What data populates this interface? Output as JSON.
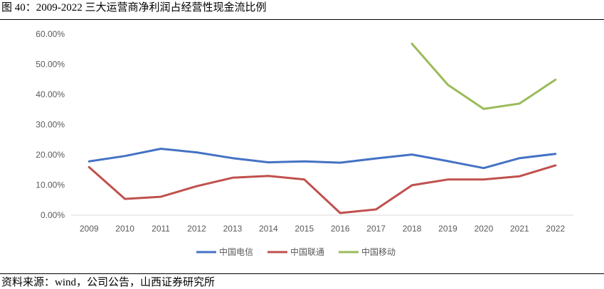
{
  "figure": {
    "title": "图 40：2009-2022 三大运营商净利润占经营性现金流比例",
    "source": "资料来源：wind，公司公告，山西证券研究所"
  },
  "chart_data": {
    "type": "line",
    "title": "",
    "xlabel": "",
    "ylabel": "",
    "categories": [
      "2009",
      "2010",
      "2011",
      "2012",
      "2013",
      "2014",
      "2015",
      "2016",
      "2017",
      "2018",
      "2019",
      "2020",
      "2021",
      "2022"
    ],
    "y_ticks": [
      "0.00%",
      "10.00%",
      "20.00%",
      "30.00%",
      "40.00%",
      "50.00%",
      "60.00%"
    ],
    "ylim": [
      0,
      60
    ],
    "grid": false,
    "legend_position": "bottom",
    "series": [
      {
        "name": "中国电信",
        "color": "#4472C4",
        "values": [
          17.8,
          19.6,
          22.0,
          20.8,
          18.9,
          17.5,
          17.8,
          17.4,
          18.8,
          20.1,
          17.9,
          15.6,
          18.9,
          20.3
        ]
      },
      {
        "name": "中国联通",
        "color": "#C0504D",
        "values": [
          15.9,
          5.4,
          6.1,
          9.6,
          12.4,
          13.0,
          11.8,
          0.7,
          1.9,
          9.9,
          11.8,
          11.8,
          12.9,
          16.5
        ]
      },
      {
        "name": "中国移动",
        "color": "#9BBB59",
        "values": [
          null,
          null,
          null,
          null,
          null,
          null,
          null,
          null,
          null,
          56.8,
          43.2,
          35.2,
          37.0,
          44.9
        ]
      }
    ]
  }
}
